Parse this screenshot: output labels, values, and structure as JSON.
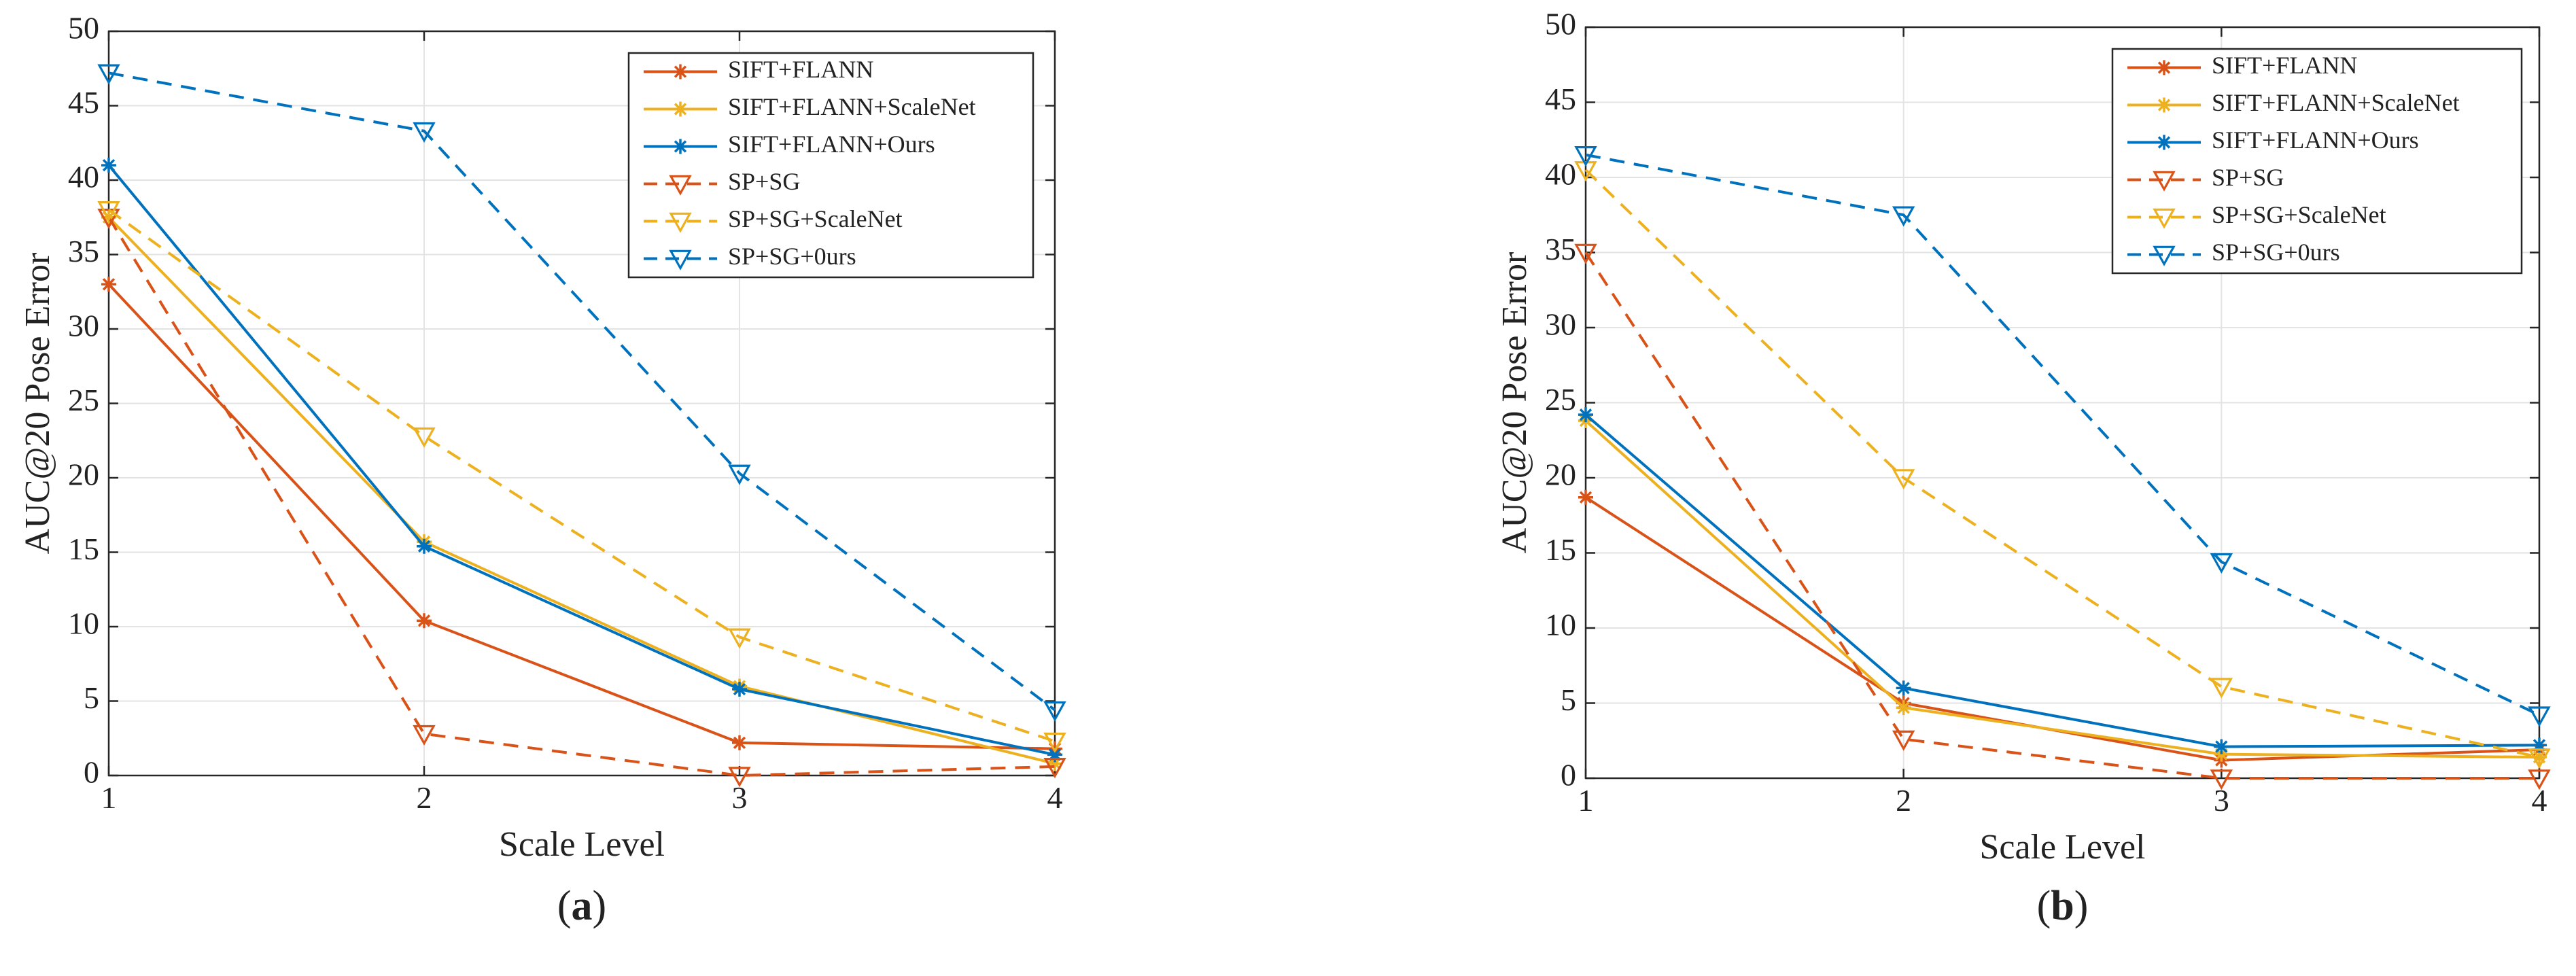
{
  "chart_data": [
    {
      "type": "line",
      "panel_label": "a",
      "title": "",
      "xlabel": "Scale Level",
      "ylabel": "AUC@20 Pose Error",
      "xlim": [
        1,
        4
      ],
      "ylim": [
        0,
        50
      ],
      "x": [
        1,
        2,
        3,
        4
      ],
      "xticks": [
        1,
        2,
        3,
        4
      ],
      "yticks": [
        0,
        5,
        10,
        15,
        20,
        25,
        30,
        35,
        40,
        45,
        50
      ],
      "grid": true,
      "legend_position": "top-right",
      "series": [
        {
          "name": "SIFT+FLANN",
          "values": [
            33.0,
            10.4,
            2.2,
            1.8
          ],
          "color": "#d95319",
          "line_style": "solid",
          "marker": "asterisk"
        },
        {
          "name": "SIFT+FLANN+ScaleNet",
          "values": [
            37.5,
            15.7,
            6.0,
            0.8
          ],
          "color": "#edb120",
          "line_style": "solid",
          "marker": "asterisk"
        },
        {
          "name": "SIFT+FLANN+Ours",
          "values": [
            41.0,
            15.4,
            5.8,
            1.4
          ],
          "color": "#0072bd",
          "line_style": "solid",
          "marker": "asterisk"
        },
        {
          "name": "SP+SG",
          "values": [
            37.5,
            2.8,
            0.0,
            0.6
          ],
          "color": "#d95319",
          "line_style": "dashed",
          "marker": "triangle-down"
        },
        {
          "name": "SP+SG+ScaleNet",
          "values": [
            38.0,
            22.8,
            9.3,
            2.3
          ],
          "color": "#edb120",
          "line_style": "dashed",
          "marker": "triangle-down"
        },
        {
          "name": "SP+SG+0urs",
          "values": [
            47.2,
            43.3,
            20.3,
            4.4
          ],
          "color": "#0072bd",
          "line_style": "dashed",
          "marker": "triangle-down"
        }
      ]
    },
    {
      "type": "line",
      "panel_label": "b",
      "title": "",
      "xlabel": "Scale Level",
      "ylabel": "AUC@20 Pose Error",
      "xlim": [
        1,
        4
      ],
      "ylim": [
        0,
        50
      ],
      "x": [
        1,
        2,
        3,
        4
      ],
      "xticks": [
        1,
        2,
        3,
        4
      ],
      "yticks": [
        0,
        5,
        10,
        15,
        20,
        25,
        30,
        35,
        40,
        45,
        50
      ],
      "grid": true,
      "legend_position": "top-right",
      "series": [
        {
          "name": "SIFT+FLANN",
          "values": [
            18.7,
            5.0,
            1.2,
            1.9
          ],
          "color": "#d95319",
          "line_style": "solid",
          "marker": "asterisk"
        },
        {
          "name": "SIFT+FLANN+ScaleNet",
          "values": [
            23.8,
            4.7,
            1.6,
            1.4
          ],
          "color": "#edb120",
          "line_style": "solid",
          "marker": "asterisk"
        },
        {
          "name": "SIFT+FLANN+Ours",
          "values": [
            24.2,
            6.0,
            2.1,
            2.2
          ],
          "color": "#0072bd",
          "line_style": "solid",
          "marker": "asterisk"
        },
        {
          "name": "SP+SG",
          "values": [
            35.0,
            2.6,
            0.0,
            0.0
          ],
          "color": "#d95319",
          "line_style": "dashed",
          "marker": "triangle-down"
        },
        {
          "name": "SP+SG+ScaleNet",
          "values": [
            40.5,
            20.0,
            6.1,
            1.4
          ],
          "color": "#edb120",
          "line_style": "dashed",
          "marker": "triangle-down"
        },
        {
          "name": "SP+SG+0urs",
          "values": [
            41.5,
            37.5,
            14.4,
            4.2
          ],
          "color": "#0072bd",
          "line_style": "dashed",
          "marker": "triangle-down"
        }
      ]
    }
  ]
}
